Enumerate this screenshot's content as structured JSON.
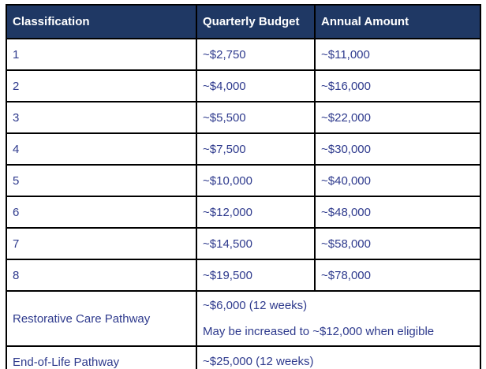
{
  "table": {
    "headers": [
      "Classification",
      "Quarterly Budget",
      "Annual Amount"
    ],
    "rows": [
      {
        "classification": "1",
        "quarterly": "~$2,750",
        "annual": "~$11,000"
      },
      {
        "classification": "2",
        "quarterly": "~$4,000",
        "annual": "~$16,000"
      },
      {
        "classification": "3",
        "quarterly": "~$5,500",
        "annual": "~$22,000"
      },
      {
        "classification": "4",
        "quarterly": "~$7,500",
        "annual": "~$30,000"
      },
      {
        "classification": "5",
        "quarterly": "~$10,000",
        "annual": "~$40,000"
      },
      {
        "classification": "6",
        "quarterly": "~$12,000",
        "annual": "~$48,000"
      },
      {
        "classification": "7",
        "quarterly": "~$14,500",
        "annual": "~$58,000"
      },
      {
        "classification": "8",
        "quarterly": "~$19,500",
        "annual": "~$78,000"
      }
    ],
    "pathways": [
      {
        "label": "Restorative Care Pathway",
        "lines": [
          "~$6,000 (12 weeks)",
          "May be increased to ~$12,000 when eligible"
        ]
      },
      {
        "label": "End-of-Life Pathway",
        "lines": [
          "~$25,000 (12 weeks)"
        ]
      }
    ],
    "colors": {
      "header_bg": "#1f3864",
      "header_text": "#ffffff",
      "body_text": "#2e3a8d",
      "border": "#000000"
    }
  }
}
